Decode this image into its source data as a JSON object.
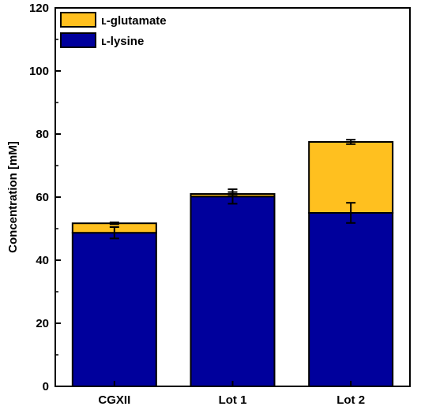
{
  "chart_data": {
    "type": "bar",
    "stacked": true,
    "categories": [
      "CGXII",
      "Lot 1",
      "Lot 2"
    ],
    "series": [
      {
        "name": "ʟ-lysine",
        "color": "#00009c",
        "values": [
          48.7,
          60.2,
          55.0
        ],
        "errors": [
          1.8,
          2.3,
          3.2
        ]
      },
      {
        "name": "ʟ-glutamate",
        "color": "#ffc01f",
        "values": [
          3.0,
          0.8,
          22.5
        ],
        "errors": [
          0.3,
          0.6,
          0.7
        ]
      }
    ],
    "ylabel": "Concentration [mM]",
    "xlabel": "",
    "ylim": [
      0,
      120
    ],
    "yticks": [
      0,
      20,
      40,
      60,
      80,
      100,
      120
    ],
    "grid": false,
    "legend_position": "top-left",
    "legend_order": [
      "ʟ-glutamate",
      "ʟ-lysine"
    ]
  }
}
